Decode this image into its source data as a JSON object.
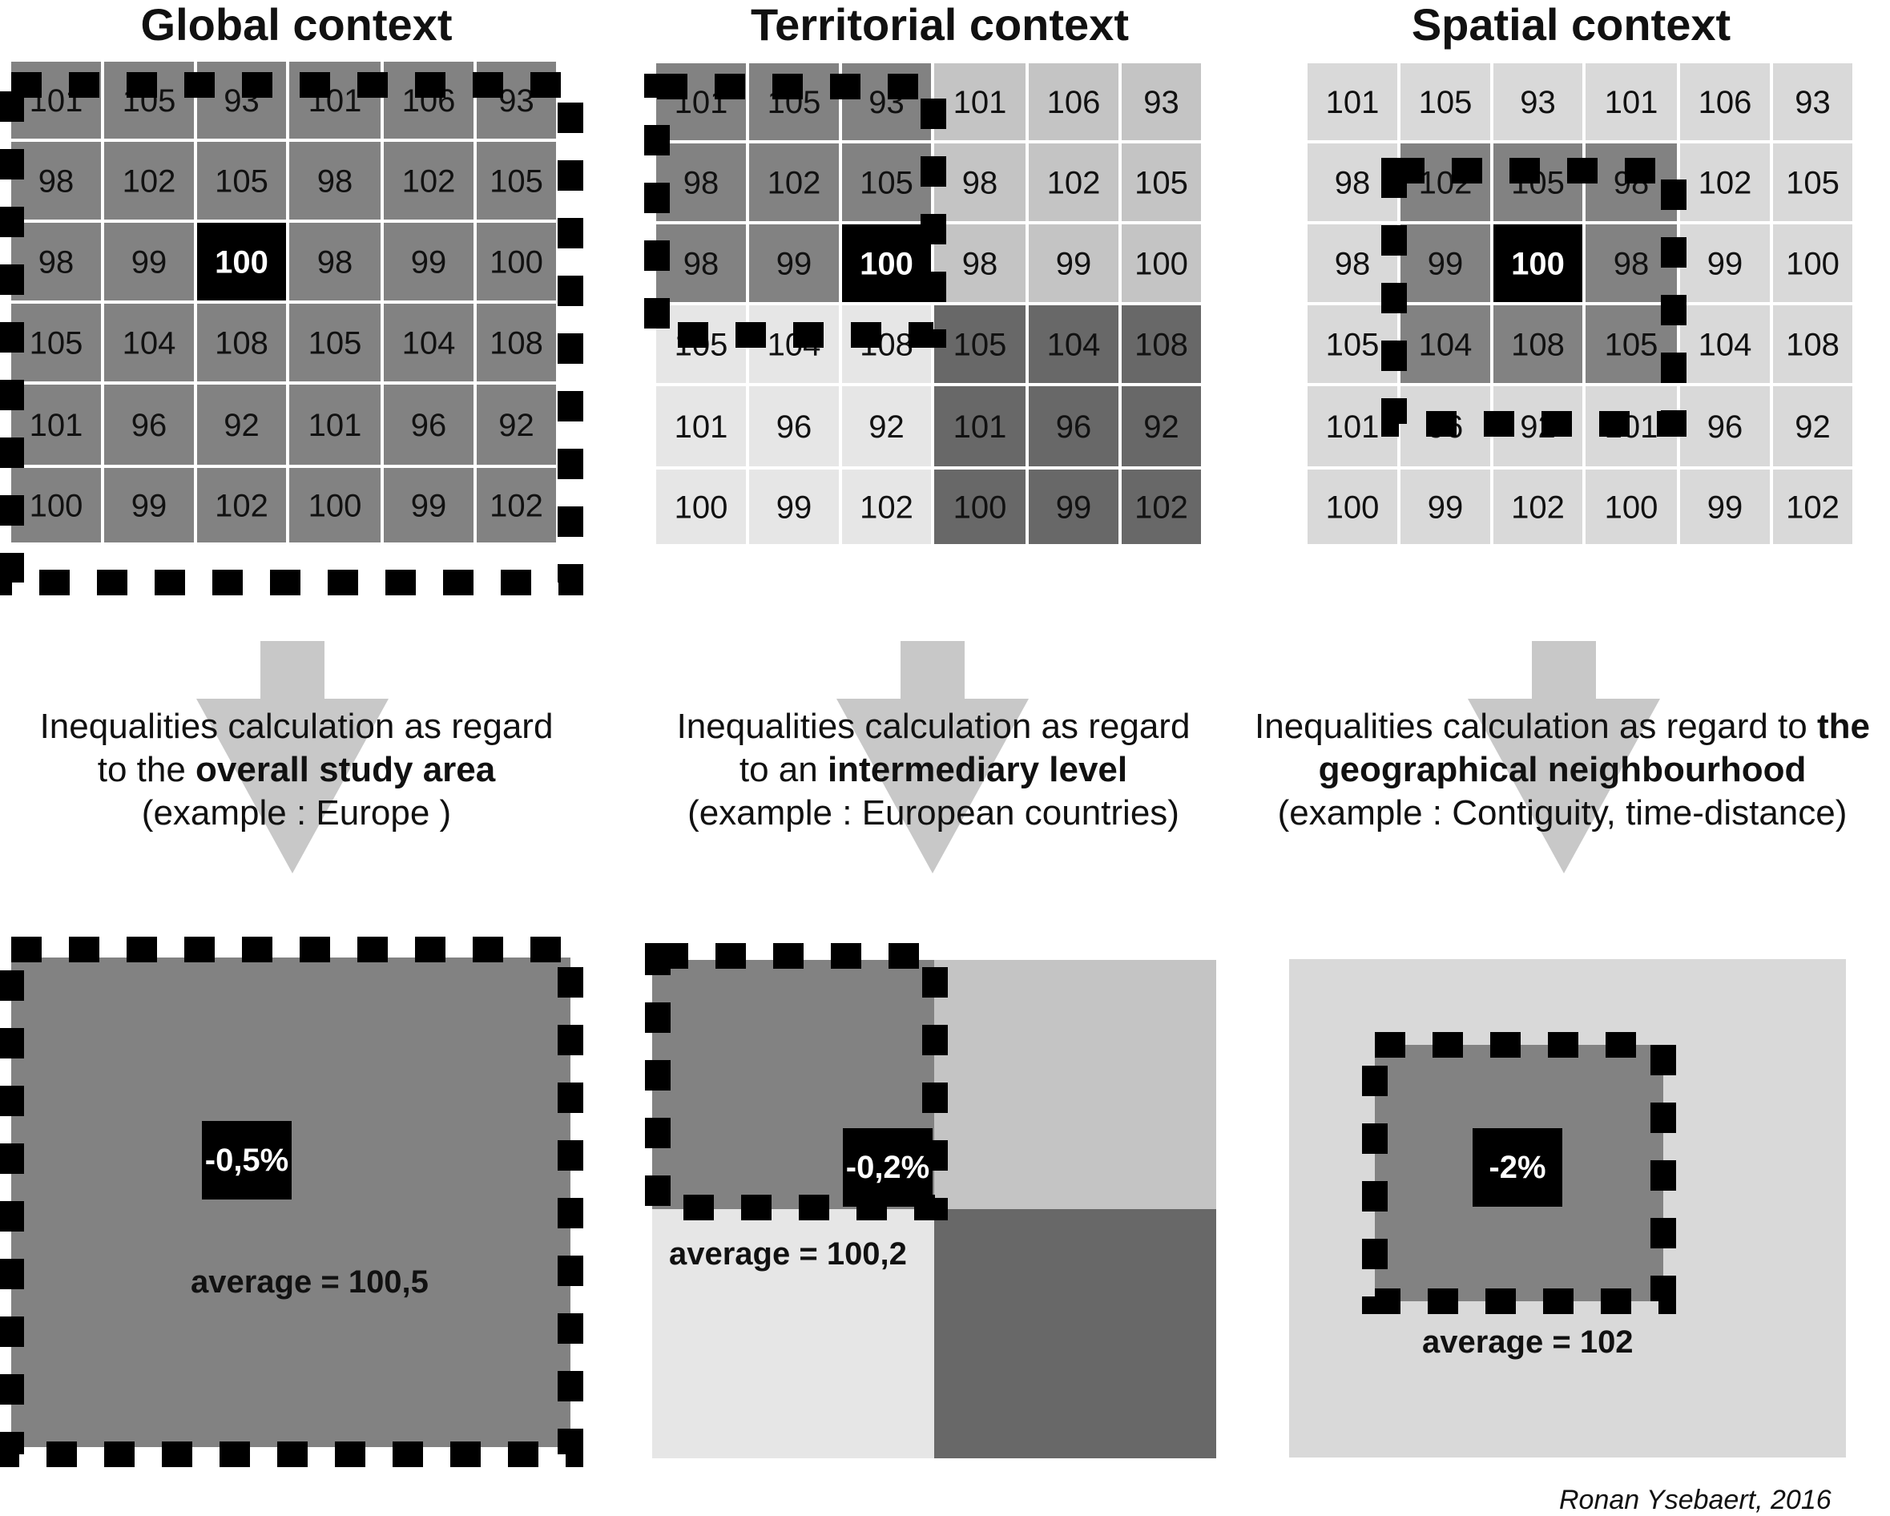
{
  "colors": {
    "medium_gray": "#828282",
    "light_gray": "#c4c4c4",
    "very_light_gray": "#e6e6e6",
    "dark_gray": "#686868",
    "neighbour_gray": "#d9d9d9",
    "center_black": "#000000",
    "frame_black": "#000000",
    "arrow_gray": "#c8c8c8"
  },
  "grid_values": [
    [
      101,
      105,
      93,
      101,
      106,
      93
    ],
    [
      98,
      102,
      105,
      98,
      102,
      105
    ],
    [
      98,
      99,
      100,
      98,
      99,
      100
    ],
    [
      105,
      104,
      108,
      105,
      104,
      108
    ],
    [
      101,
      96,
      92,
      101,
      96,
      92
    ],
    [
      100,
      99,
      102,
      100,
      99,
      102
    ]
  ],
  "panels": [
    {
      "title": "Global context",
      "caption_plain_1": "Inequalities calculation as regard",
      "caption_plain_2": "to the ",
      "caption_bold_2": "overall study area",
      "caption_3": "(example : Europe )",
      "result_pct": "-0,5%",
      "average": "average = 100,5"
    },
    {
      "title": "Territorial context",
      "caption_plain_1": "Inequalities calculation as regard",
      "caption_plain_2": "to an ",
      "caption_bold_2": "intermediary level",
      "caption_3": "(example : European countries)",
      "result_pct": "-0,2%",
      "average": "average = 100,2"
    },
    {
      "title": "Spatial context",
      "caption_plain_1": "Inequalities calculation as regard to ",
      "caption_bold_1": "the",
      "caption_bold_2": "geographical neighbourhood",
      "caption_3": "(example : Contiguity, time-distance)",
      "result_pct": "-2%",
      "average": "average = 102"
    }
  ],
  "credit": "Ronan Ysebaert, 2016"
}
